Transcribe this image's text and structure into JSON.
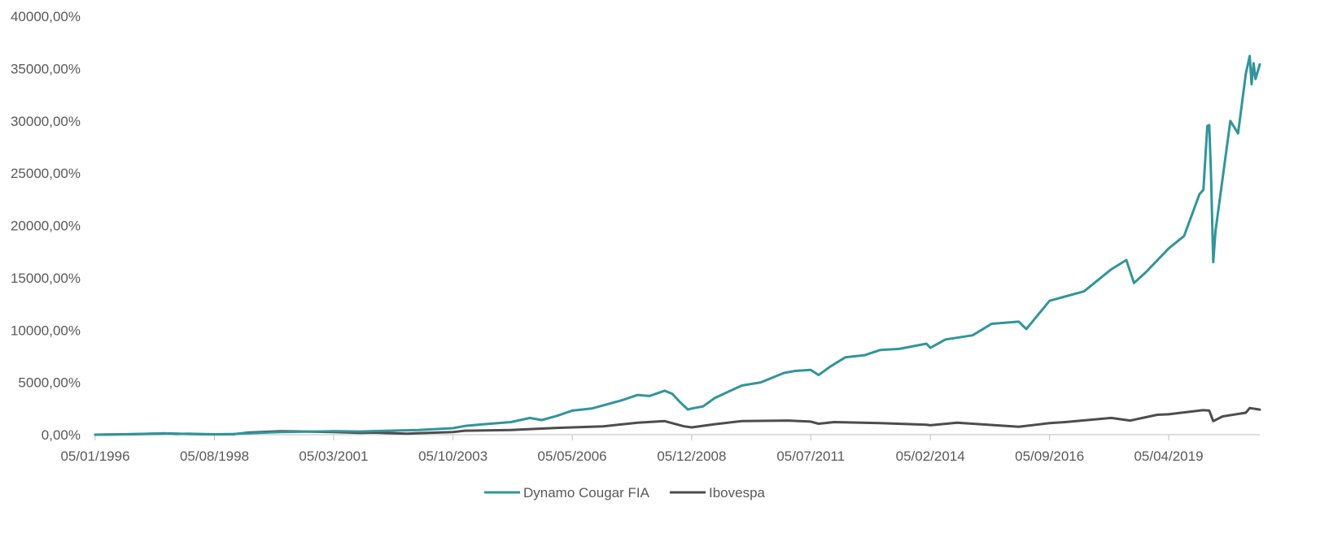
{
  "chart_data": {
    "type": "line",
    "title": "",
    "xlabel": "",
    "ylabel": "",
    "x_range": [
      "05/01/1996",
      "26/03/2021"
    ],
    "ylim": [
      0,
      40000
    ],
    "y_ticks": [
      0,
      5000,
      10000,
      15000,
      20000,
      25000,
      30000,
      35000,
      40000
    ],
    "y_tick_labels": [
      "0,00%",
      "5000,00%",
      "10000,00%",
      "15000,00%",
      "20000,00%",
      "25000,00%",
      "30000,00%",
      "35000,00%",
      "40000,00%"
    ],
    "x_ticks": [
      "05/01/1996",
      "05/08/1998",
      "05/03/2001",
      "05/10/2003",
      "05/05/2006",
      "05/12/2008",
      "05/07/2011",
      "05/02/2014",
      "05/09/2016",
      "05/04/2019"
    ],
    "grid": false,
    "legend_position": "bottom",
    "series": [
      {
        "name": "Dynamo Cougar FIA",
        "color": "#31959b",
        "points": [
          [
            "05/01/1996",
            0
          ],
          [
            "05/06/1996",
            20
          ],
          [
            "05/01/1997",
            80
          ],
          [
            "05/07/1997",
            130
          ],
          [
            "05/10/1997",
            60
          ],
          [
            "05/01/1998",
            90
          ],
          [
            "05/08/1998",
            40
          ],
          [
            "05/01/1999",
            70
          ],
          [
            "05/05/1999",
            150
          ],
          [
            "05/01/2000",
            260
          ],
          [
            "05/06/2000",
            280
          ],
          [
            "05/01/2001",
            320
          ],
          [
            "05/03/2001",
            340
          ],
          [
            "05/10/2001",
            300
          ],
          [
            "05/01/2002",
            340
          ],
          [
            "05/01/2003",
            450
          ],
          [
            "05/10/2003",
            620
          ],
          [
            "05/01/2004",
            830
          ],
          [
            "05/06/2004",
            1000
          ],
          [
            "05/01/2005",
            1200
          ],
          [
            "05/06/2005",
            1600
          ],
          [
            "05/09/2005",
            1400
          ],
          [
            "05/01/2006",
            1800
          ],
          [
            "05/05/2006",
            2300
          ],
          [
            "05/10/2006",
            2500
          ],
          [
            "05/01/2007",
            2800
          ],
          [
            "05/06/2007",
            3300
          ],
          [
            "05/10/2007",
            3800
          ],
          [
            "05/01/2008",
            3700
          ],
          [
            "05/05/2008",
            4200
          ],
          [
            "05/07/2008",
            3900
          ],
          [
            "05/09/2008",
            3100
          ],
          [
            "05/11/2008",
            2400
          ],
          [
            "05/12/2008",
            2500
          ],
          [
            "05/03/2009",
            2700
          ],
          [
            "05/06/2009",
            3500
          ],
          [
            "05/01/2010",
            4700
          ],
          [
            "05/06/2010",
            5000
          ],
          [
            "05/12/2010",
            5900
          ],
          [
            "05/03/2011",
            6100
          ],
          [
            "05/07/2011",
            6200
          ],
          [
            "05/09/2011",
            5700
          ],
          [
            "05/12/2011",
            6500
          ],
          [
            "05/04/2012",
            7400
          ],
          [
            "05/09/2012",
            7600
          ],
          [
            "05/01/2013",
            8100
          ],
          [
            "05/06/2013",
            8200
          ],
          [
            "05/01/2014",
            8700
          ],
          [
            "05/02/2014",
            8300
          ],
          [
            "05/06/2014",
            9100
          ],
          [
            "05/01/2015",
            9500
          ],
          [
            "05/06/2015",
            10600
          ],
          [
            "05/01/2016",
            10800
          ],
          [
            "05/03/2016",
            10100
          ],
          [
            "05/09/2016",
            12800
          ],
          [
            "05/01/2017",
            13200
          ],
          [
            "05/06/2017",
            13700
          ],
          [
            "05/01/2018",
            15800
          ],
          [
            "05/05/2018",
            16700
          ],
          [
            "05/07/2018",
            14500
          ],
          [
            "05/10/2018",
            15500
          ],
          [
            "05/04/2019",
            17800
          ],
          [
            "05/08/2019",
            19000
          ],
          [
            "05/12/2019",
            23000
          ],
          [
            "05/01/2020",
            23400
          ],
          [
            "05/02/2020",
            29500
          ],
          [
            "20/02/2020",
            29600
          ],
          [
            "05/03/2020",
            25000
          ],
          [
            "23/03/2020",
            16500
          ],
          [
            "10/04/2020",
            19500
          ],
          [
            "05/06/2020",
            24500
          ],
          [
            "05/08/2020",
            30000
          ],
          [
            "05/10/2020",
            28800
          ],
          [
            "05/12/2020",
            34500
          ],
          [
            "05/01/2021",
            36200
          ],
          [
            "20/01/2021",
            33500
          ],
          [
            "05/02/2021",
            35500
          ],
          [
            "20/02/2021",
            34000
          ],
          [
            "26/03/2021",
            35400
          ]
        ]
      },
      {
        "name": "Ibovespa",
        "color": "#4d4d4d",
        "points": [
          [
            "05/01/1996",
            0
          ],
          [
            "05/01/1997",
            60
          ],
          [
            "05/08/1997",
            120
          ],
          [
            "05/01/1998",
            70
          ],
          [
            "05/08/1998",
            30
          ],
          [
            "05/01/1999",
            50
          ],
          [
            "05/05/1999",
            200
          ],
          [
            "05/01/2000",
            330
          ],
          [
            "05/06/2000",
            310
          ],
          [
            "05/03/2001",
            260
          ],
          [
            "05/10/2001",
            180
          ],
          [
            "05/01/2002",
            200
          ],
          [
            "05/10/2002",
            100
          ],
          [
            "05/01/2003",
            150
          ],
          [
            "05/10/2003",
            250
          ],
          [
            "05/01/2004",
            380
          ],
          [
            "05/01/2005",
            450
          ],
          [
            "05/01/2006",
            650
          ],
          [
            "05/05/2006",
            700
          ],
          [
            "05/01/2007",
            800
          ],
          [
            "05/10/2007",
            1150
          ],
          [
            "05/05/2008",
            1300
          ],
          [
            "05/10/2008",
            800
          ],
          [
            "05/12/2008",
            700
          ],
          [
            "05/06/2009",
            1000
          ],
          [
            "05/01/2010",
            1300
          ],
          [
            "05/01/2011",
            1350
          ],
          [
            "05/07/2011",
            1250
          ],
          [
            "05/09/2011",
            1050
          ],
          [
            "05/01/2012",
            1200
          ],
          [
            "05/01/2013",
            1100
          ],
          [
            "05/01/2014",
            950
          ],
          [
            "05/02/2014",
            900
          ],
          [
            "05/09/2014",
            1150
          ],
          [
            "05/01/2016",
            750
          ],
          [
            "05/09/2016",
            1100
          ],
          [
            "05/01/2017",
            1200
          ],
          [
            "05/01/2018",
            1600
          ],
          [
            "05/06/2018",
            1350
          ],
          [
            "05/01/2019",
            1900
          ],
          [
            "05/04/2019",
            1950
          ],
          [
            "05/01/2020",
            2350
          ],
          [
            "20/02/2020",
            2300
          ],
          [
            "23/03/2020",
            1300
          ],
          [
            "05/06/2020",
            1750
          ],
          [
            "05/12/2020",
            2100
          ],
          [
            "05/01/2021",
            2550
          ],
          [
            "26/03/2021",
            2400
          ]
        ]
      }
    ]
  }
}
